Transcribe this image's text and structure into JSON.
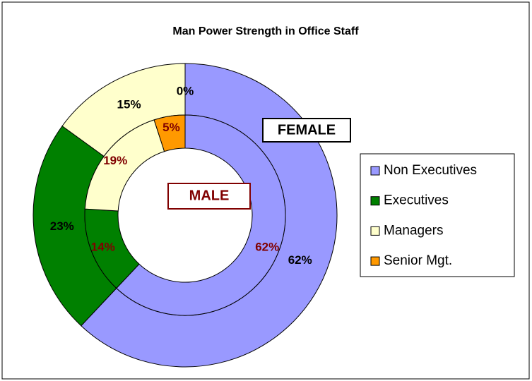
{
  "chart_data": {
    "type": "doughnut",
    "title": "Man Power Strength in Office Staff",
    "categories": [
      "Non Executives",
      "Executives",
      "Managers",
      "Senior Mgt."
    ],
    "colors": [
      "#9999ff",
      "#008000",
      "#ffffcc",
      "#ff9900"
    ],
    "legend": "right",
    "series": [
      {
        "name": "FEMALE",
        "label_color": "#000000",
        "values": [
          62,
          23,
          15,
          0
        ],
        "value_labels": [
          "62%",
          "23%",
          "15%",
          "0%"
        ]
      },
      {
        "name": "MALE",
        "label_color": "#800000",
        "values": [
          62,
          14,
          19,
          5
        ],
        "value_labels": [
          "62%",
          "14%",
          "19%",
          "5%"
        ]
      }
    ]
  }
}
